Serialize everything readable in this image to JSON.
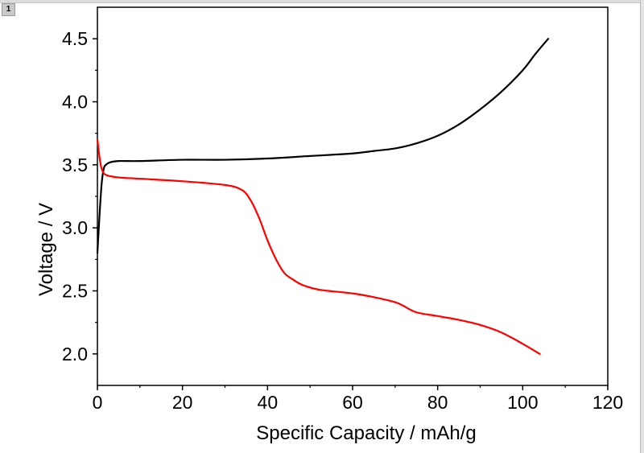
{
  "window": {
    "page_tab": "1"
  },
  "chart_data": {
    "type": "line",
    "title": "",
    "xlabel": "Specific Capacity / mAh/g",
    "ylabel": "Voltage / V",
    "xlim": [
      0,
      120
    ],
    "ylim": [
      1.75,
      4.75
    ],
    "xticks": [
      0,
      20,
      40,
      60,
      80,
      100,
      120
    ],
    "yticks": [
      2.0,
      2.5,
      3.0,
      3.5,
      4.0,
      4.5
    ],
    "grid": false,
    "legend": "none",
    "series": [
      {
        "color": "#000000",
        "points": [
          [
            0.0,
            2.8
          ],
          [
            0.5,
            3.1
          ],
          [
            1.0,
            3.35
          ],
          [
            1.5,
            3.47
          ],
          [
            2.0,
            3.5
          ],
          [
            3.0,
            3.52
          ],
          [
            5,
            3.53
          ],
          [
            10,
            3.53
          ],
          [
            20,
            3.54
          ],
          [
            30,
            3.54
          ],
          [
            40,
            3.55
          ],
          [
            50,
            3.57
          ],
          [
            60,
            3.59
          ],
          [
            65,
            3.61
          ],
          [
            70,
            3.63
          ],
          [
            75,
            3.67
          ],
          [
            80,
            3.73
          ],
          [
            85,
            3.82
          ],
          [
            90,
            3.94
          ],
          [
            95,
            4.08
          ],
          [
            100,
            4.25
          ],
          [
            103,
            4.38
          ],
          [
            106,
            4.5
          ]
        ]
      },
      {
        "color": "#ff0000",
        "points": [
          [
            0.0,
            3.7
          ],
          [
            0.5,
            3.56
          ],
          [
            1.0,
            3.47
          ],
          [
            2.0,
            3.42
          ],
          [
            5,
            3.4
          ],
          [
            10,
            3.39
          ],
          [
            20,
            3.37
          ],
          [
            30,
            3.34
          ],
          [
            34,
            3.3
          ],
          [
            36,
            3.22
          ],
          [
            38,
            3.08
          ],
          [
            40,
            2.9
          ],
          [
            42,
            2.75
          ],
          [
            44,
            2.64
          ],
          [
            46,
            2.59
          ],
          [
            48,
            2.55
          ],
          [
            52,
            2.51
          ],
          [
            60,
            2.48
          ],
          [
            65,
            2.45
          ],
          [
            70,
            2.41
          ],
          [
            72,
            2.38
          ],
          [
            75,
            2.33
          ],
          [
            80,
            2.3
          ],
          [
            85,
            2.27
          ],
          [
            90,
            2.23
          ],
          [
            95,
            2.17
          ],
          [
            100,
            2.08
          ],
          [
            104,
            2.0
          ]
        ]
      }
    ]
  }
}
